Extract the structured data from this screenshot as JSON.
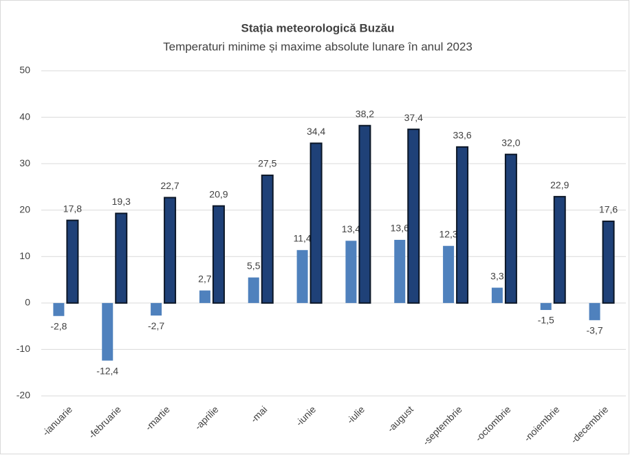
{
  "chart_data": {
    "type": "bar",
    "title": "Stația meteorologică Buzău",
    "subtitle": "Temperaturi minime și maxime absolute lunare în anul 2023",
    "categories": [
      "-ianuarie",
      "-februarie",
      "-martie",
      "-aprilie",
      "-mai",
      "-iunie",
      "-iulie",
      "-august",
      "-septembrie",
      "-octombrie",
      "-noiembrie",
      "-decembrie"
    ],
    "series": [
      {
        "color": "#4f81bd",
        "values": [
          -2.8,
          -12.4,
          -2.7,
          2.7,
          5.5,
          11.4,
          13.4,
          13.6,
          12.3,
          3.3,
          -1.5,
          -3.7
        ],
        "value_labels": [
          "-2,8",
          "-12,4",
          "-2,7",
          "2,7",
          "5,5",
          "11,4",
          "13,4",
          "13,6",
          "12,3",
          "3,3",
          "-1,5",
          "-3,7"
        ]
      },
      {
        "color": "#1f4178",
        "edgecolor": "#0b1626",
        "values": [
          17.8,
          19.3,
          22.7,
          20.9,
          27.5,
          34.4,
          38.2,
          37.4,
          33.6,
          32.0,
          22.9,
          17.6
        ],
        "value_labels": [
          "17,8",
          "19,3",
          "22,7",
          "20,9",
          "27,5",
          "34,4",
          "38,2",
          "37,4",
          "33,6",
          "32,0",
          "22,9",
          "17,6"
        ]
      }
    ],
    "ylim": [
      -20,
      50
    ],
    "yticks": [
      -20,
      -10,
      0,
      10,
      20,
      30,
      40,
      50
    ],
    "grid": true
  }
}
